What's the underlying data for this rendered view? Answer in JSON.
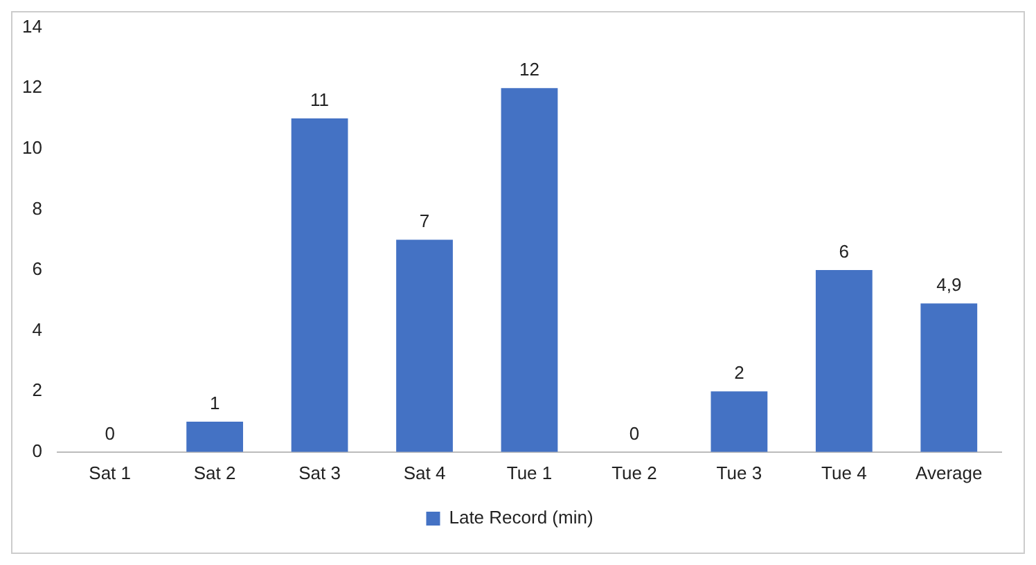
{
  "chart_data": {
    "type": "bar",
    "categories": [
      "Sat 1",
      "Sat 2",
      "Sat 3",
      "Sat 4",
      "Tue 1",
      "Tue 2",
      "Tue 3",
      "Tue 4",
      "Average"
    ],
    "series": [
      {
        "name": "Late Record (min)",
        "color": "#4472c4",
        "values": [
          0,
          1,
          11,
          7,
          12,
          0,
          2,
          6,
          4.9
        ],
        "value_labels": [
          "0",
          "1",
          "11",
          "7",
          "12",
          "0",
          "2",
          "6",
          "4,9"
        ]
      }
    ],
    "ylim": [
      0,
      14
    ],
    "yticks": [
      0,
      2,
      4,
      6,
      8,
      10,
      12,
      14
    ],
    "grid": false,
    "legend": "bottom"
  }
}
